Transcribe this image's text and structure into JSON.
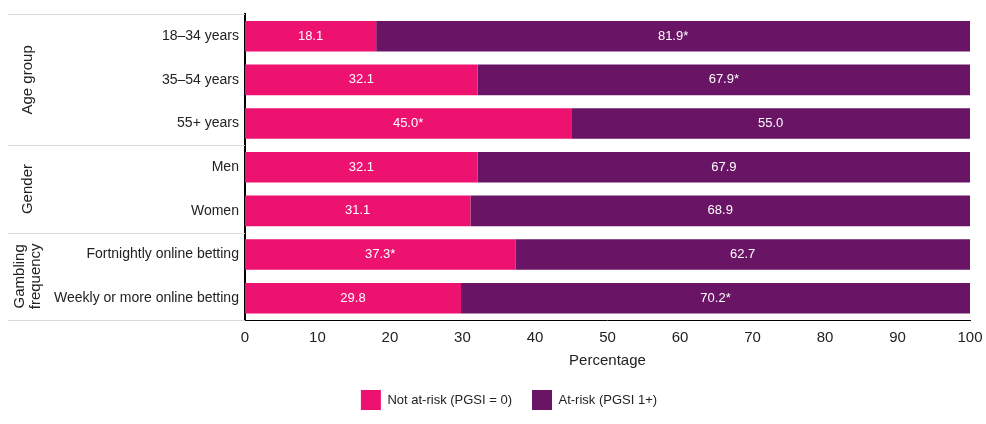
{
  "chart_data": {
    "type": "bar",
    "orientation": "horizontal",
    "stacked": true,
    "data_labels": true,
    "grid": false,
    "legend": "bottom",
    "categories": [
      "18–34 years",
      "35–54 years",
      "55+ years",
      "Men",
      "Women",
      "Fortnightly online betting",
      "Weekly or more online betting"
    ],
    "groups": [
      {
        "label": "Age group",
        "categories": [
          "18–34 years",
          "35–54 years",
          "55+ years"
        ]
      },
      {
        "label": "Gender",
        "categories": [
          "Men",
          "Women"
        ]
      },
      {
        "label": "Gambling frequency",
        "categories": [
          "Fortnightly online betting",
          "Weekly or more online betting"
        ]
      }
    ],
    "series": [
      {
        "name": "Not at-risk (PGSI = 0)",
        "color": "#ed1170",
        "values": [
          18.1,
          32.1,
          45.0,
          32.1,
          31.1,
          37.3,
          29.8
        ],
        "value_labels": [
          "18.1",
          "32.1",
          "45.0*",
          "32.1",
          "31.1",
          "37.3*",
          "29.8"
        ]
      },
      {
        "name": "At-risk (PGSI 1+)",
        "color": "#6a1466",
        "values": [
          81.9,
          67.9,
          55.0,
          67.9,
          68.9,
          62.7,
          70.2
        ],
        "value_labels": [
          "81.9*",
          "67.9*",
          "55.0",
          "67.9",
          "68.9",
          "62.7",
          "70.2*"
        ]
      }
    ],
    "x_label": "Percentage",
    "xlim": [
      0,
      100
    ],
    "xticks": [
      0,
      10,
      20,
      30,
      40,
      50,
      60,
      70,
      80,
      90,
      100
    ]
  }
}
